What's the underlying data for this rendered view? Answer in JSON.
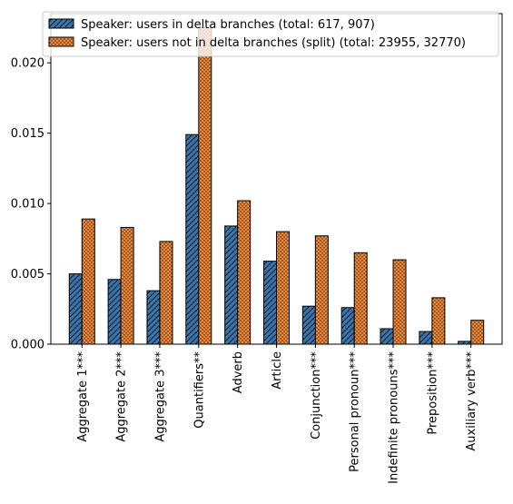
{
  "chart_data": {
    "type": "bar",
    "categories": [
      "Aggregate 1***",
      "Aggregate 2***",
      "Aggregate 3***",
      "Quantifiers**",
      "Adverb",
      "Article",
      "Conjunction***",
      "Personal pronoun***",
      "Indefinite pronouns***",
      "Preposition***",
      "Auxiliary verb***"
    ],
    "series": [
      {
        "name": "Speaker: users in delta branches (total: 617, 907)",
        "color": "#3b75af",
        "hatch": "diagonal",
        "values": [
          0.005,
          0.0046,
          0.0038,
          0.0149,
          0.0084,
          0.0059,
          0.0027,
          0.0026,
          0.0011,
          0.0009,
          0.0002
        ]
      },
      {
        "name": "Speaker: users not in delta branches (split) (total: 23955, 32770)",
        "color": "#ef8636",
        "hatch": "dots",
        "values": [
          0.0089,
          0.0083,
          0.0073,
          0.0225,
          0.0102,
          0.008,
          0.0077,
          0.0065,
          0.006,
          0.0033,
          0.0017
        ]
      }
    ],
    "yticks": [
      "0.000",
      "0.005",
      "0.010",
      "0.015",
      "0.020"
    ],
    "ylim": [
      0,
      0.0235
    ],
    "grid": false,
    "legend_position": "top"
  }
}
